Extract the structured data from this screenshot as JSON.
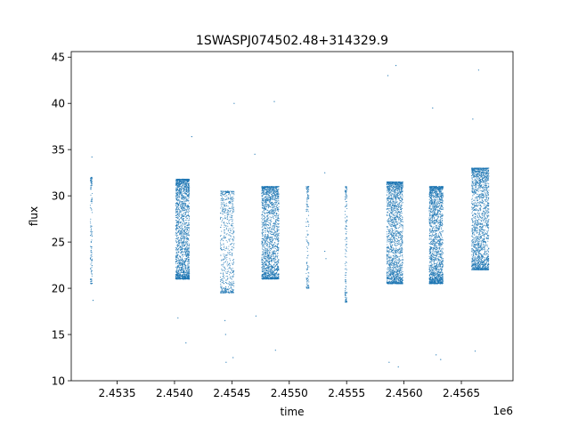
{
  "chart_data": {
    "type": "scatter",
    "title": "1SWASPJ074502.48+314329.9",
    "xlabel": "time",
    "ylabel": "flux",
    "x_offset_label": "1e6",
    "xlim": [
      2453100,
      2456950
    ],
    "ylim": [
      10,
      45.6
    ],
    "x_ticks": [
      2453500,
      2454000,
      2454500,
      2455000,
      2455500,
      2456000,
      2456500
    ],
    "x_tick_labels": [
      "2.4535",
      "2.4540",
      "2.4545",
      "2.4550",
      "2.4555",
      "2.4560",
      "2.4565"
    ],
    "y_ticks": [
      10,
      15,
      20,
      25,
      30,
      35,
      40,
      45
    ],
    "y_tick_labels": [
      "10",
      "15",
      "20",
      "25",
      "30",
      "35",
      "40",
      "45"
    ],
    "grid": false,
    "legend": "none",
    "marker_color": "#1f77b4",
    "series": [
      {
        "values": [
          {
            "x_range": [
              2453260,
              2453290
            ],
            "flux_range": [
              20.5,
              32.0
            ],
            "density": "sparse"
          },
          {
            "x_range": [
              2454010,
              2454130
            ],
            "flux_range": [
              21.0,
              31.8
            ],
            "density": "dense"
          },
          {
            "x_range": [
              2454400,
              2454520
            ],
            "flux_range": [
              19.5,
              30.5
            ],
            "density": "medium"
          },
          {
            "x_range": [
              2454760,
              2454910
            ],
            "flux_range": [
              21.0,
              31.0
            ],
            "density": "dense"
          },
          {
            "x_range": [
              2455140,
              2455180
            ],
            "flux_range": [
              20.0,
              31.0
            ],
            "density": "sparse"
          },
          {
            "x_range": [
              2455480,
              2455510
            ],
            "flux_range": [
              18.5,
              31.0
            ],
            "density": "sparse"
          },
          {
            "x_range": [
              2455850,
              2455990
            ],
            "flux_range": [
              20.5,
              31.5
            ],
            "density": "dense"
          },
          {
            "x_range": [
              2456220,
              2456340
            ],
            "flux_range": [
              20.5,
              31.0
            ],
            "density": "dense"
          },
          {
            "x_range": [
              2456590,
              2456740
            ],
            "flux_range": [
              22.0,
              33.0
            ],
            "density": "dense"
          }
        ],
        "outliers": [
          {
            "x": 2453280,
            "y": 34.2
          },
          {
            "x": 2453290,
            "y": 18.7
          },
          {
            "x": 2454150,
            "y": 36.4
          },
          {
            "x": 2454100,
            "y": 14.1
          },
          {
            "x": 2454030,
            "y": 16.8
          },
          {
            "x": 2454440,
            "y": 16.5
          },
          {
            "x": 2454445,
            "y": 15.0
          },
          {
            "x": 2454450,
            "y": 12.0
          },
          {
            "x": 2454520,
            "y": 40.0
          },
          {
            "x": 2454510,
            "y": 12.5
          },
          {
            "x": 2454700,
            "y": 34.5
          },
          {
            "x": 2454710,
            "y": 17.0
          },
          {
            "x": 2454870,
            "y": 40.2
          },
          {
            "x": 2454880,
            "y": 13.3
          },
          {
            "x": 2455310,
            "y": 32.5
          },
          {
            "x": 2455320,
            "y": 23.2
          },
          {
            "x": 2455310,
            "y": 24.0
          },
          {
            "x": 2455860,
            "y": 43.0
          },
          {
            "x": 2455870,
            "y": 12.0
          },
          {
            "x": 2455930,
            "y": 44.1
          },
          {
            "x": 2455950,
            "y": 11.5
          },
          {
            "x": 2456250,
            "y": 39.5
          },
          {
            "x": 2456280,
            "y": 12.8
          },
          {
            "x": 2456320,
            "y": 12.3
          },
          {
            "x": 2456600,
            "y": 38.3
          },
          {
            "x": 2456650,
            "y": 43.6
          },
          {
            "x": 2456620,
            "y": 13.2
          }
        ]
      }
    ]
  }
}
